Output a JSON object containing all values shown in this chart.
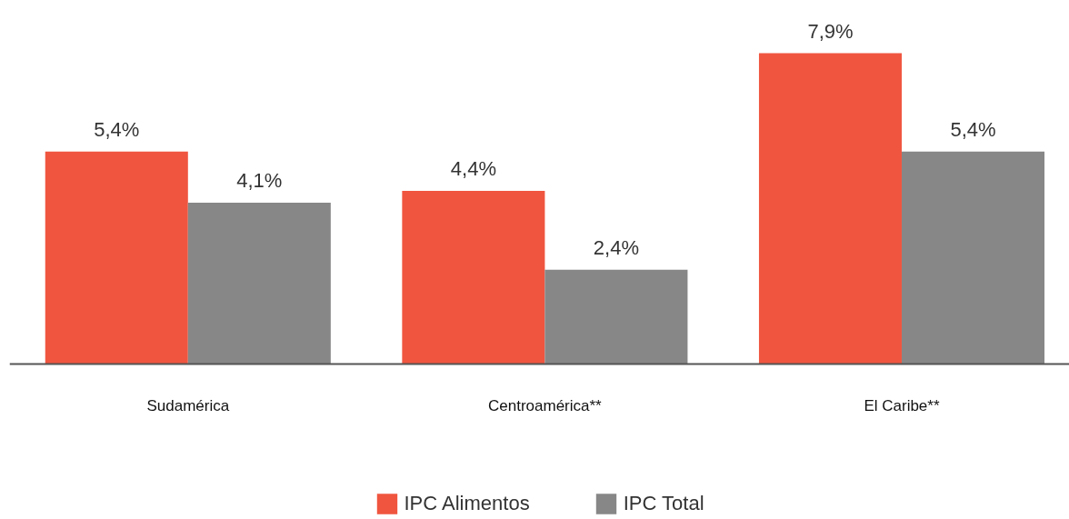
{
  "chart_data": {
    "type": "bar",
    "categories": [
      "Sudamérica",
      "Centroamérica**",
      "El Caribe**"
    ],
    "series": [
      {
        "name": "IPC Alimentos",
        "color": "#f0553f",
        "values": [
          5.4,
          4.4,
          7.9
        ],
        "value_labels": [
          "5,4%",
          "4,4%",
          "7,9%"
        ]
      },
      {
        "name": "IPC Total",
        "color": "#878787",
        "values": [
          4.1,
          2.4,
          5.4
        ],
        "value_labels": [
          "4,1%",
          "2,4%",
          "5,4%"
        ]
      }
    ],
    "legend": "bottom"
  }
}
